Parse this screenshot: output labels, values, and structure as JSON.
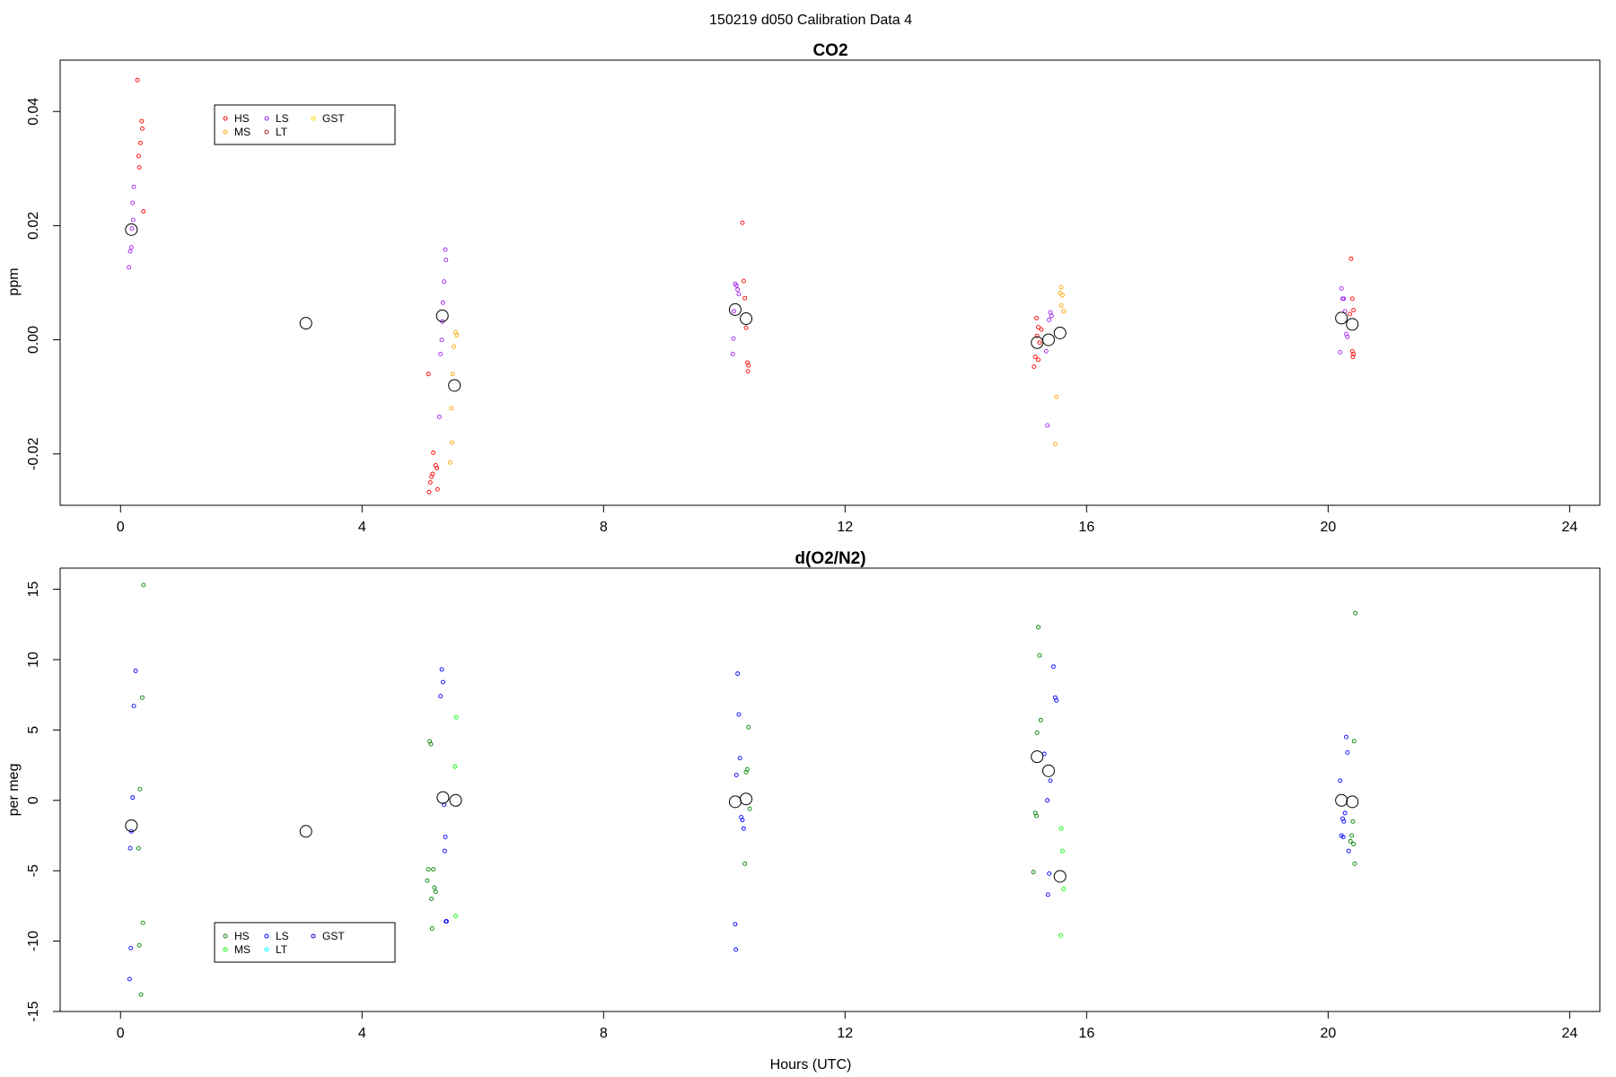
{
  "figure": {
    "title": "150219   d050   Calibration Data 4"
  },
  "colors": {
    "HS": "#ff0000",
    "MS": "#ffa500",
    "LS": "#a020f0",
    "LT": "#b22222",
    "GST": "#ffd700",
    "HS2": "#008000",
    "MS2": "#00ff00",
    "LS2": "#0000ff",
    "LT2": "#00ffff",
    "GST2": "#0000cd",
    "mean": "#000000"
  },
  "chart_data": [
    {
      "type": "scatter",
      "title": "CO2",
      "xlabel": "",
      "ylabel": "ppm",
      "xlim": [
        -1,
        24.5
      ],
      "ylim": [
        -0.029,
        0.049
      ],
      "xticks": [
        0,
        4,
        8,
        12,
        16,
        20,
        24
      ],
      "xtick_labels": [
        "0",
        "4",
        "8",
        "12",
        "16",
        "20",
        "24"
      ],
      "yticks": [
        -0.02,
        0.0,
        0.02,
        0.04
      ],
      "ytick_labels": [
        "-0.02",
        "0.00",
        "0.02",
        "0.04"
      ],
      "grid": false,
      "legend": {
        "position": "top-left",
        "entries": [
          {
            "label": "HS",
            "color": "#ff0000"
          },
          {
            "label": "MS",
            "color": "#ffa500"
          },
          {
            "label": "LS",
            "color": "#a020f0"
          },
          {
            "label": "LT",
            "color": "#b22222"
          },
          {
            "label": "GST",
            "color": "#ffd700"
          }
        ]
      },
      "series": [
        {
          "name": "HS",
          "color": "#ff0000",
          "points": [
            [
              0.28,
              0.0455
            ],
            [
              0.35,
              0.0383
            ],
            [
              0.36,
              0.037
            ],
            [
              0.33,
              0.0345
            ],
            [
              0.3,
              0.0322
            ],
            [
              0.31,
              0.0302
            ],
            [
              0.38,
              0.0225
            ],
            [
              5.1,
              -0.006
            ],
            [
              5.18,
              -0.0198
            ],
            [
              5.22,
              -0.022
            ],
            [
              5.24,
              -0.0225
            ],
            [
              5.17,
              -0.0235
            ],
            [
              5.15,
              -0.024
            ],
            [
              5.13,
              -0.025
            ],
            [
              5.25,
              -0.0262
            ],
            [
              5.11,
              -0.0267
            ],
            [
              10.3,
              0.0205
            ],
            [
              10.32,
              0.0103
            ],
            [
              10.34,
              0.0073
            ],
            [
              10.36,
              0.0021
            ],
            [
              10.38,
              -0.004
            ],
            [
              10.4,
              -0.0045
            ],
            [
              10.39,
              -0.0055
            ],
            [
              15.17,
              0.0038
            ],
            [
              15.2,
              0.0022
            ],
            [
              15.25,
              0.0018
            ],
            [
              15.18,
              0.0007
            ],
            [
              15.22,
              -0.0005
            ],
            [
              15.15,
              -0.003
            ],
            [
              15.2,
              -0.0035
            ],
            [
              15.13,
              -0.0047
            ],
            [
              20.38,
              0.0142
            ],
            [
              20.4,
              0.0072
            ],
            [
              20.42,
              0.0052
            ],
            [
              20.36,
              0.0045
            ],
            [
              20.4,
              -0.002
            ],
            [
              20.42,
              -0.0025
            ],
            [
              20.41,
              -0.003
            ]
          ]
        },
        {
          "name": "MS",
          "color": "#ffa500",
          "points": [
            [
              5.55,
              0.0013
            ],
            [
              5.57,
              0.0008
            ],
            [
              5.52,
              -0.0012
            ],
            [
              5.5,
              -0.006
            ],
            [
              5.48,
              -0.012
            ],
            [
              5.49,
              -0.018
            ],
            [
              5.46,
              -0.0215
            ],
            [
              15.58,
              0.0092
            ],
            [
              15.56,
              0.0082
            ],
            [
              15.6,
              0.0078
            ],
            [
              15.58,
              0.006
            ],
            [
              15.62,
              0.005
            ],
            [
              15.5,
              -0.01
            ],
            [
              15.48,
              -0.0183
            ]
          ]
        },
        {
          "name": "LS",
          "color": "#a020f0",
          "points": [
            [
              0.22,
              0.0268
            ],
            [
              0.2,
              0.024
            ],
            [
              0.21,
              0.021
            ],
            [
              0.19,
              0.0195
            ],
            [
              0.18,
              0.0162
            ],
            [
              0.16,
              0.0155
            ],
            [
              0.14,
              0.0127
            ],
            [
              5.38,
              0.0158
            ],
            [
              5.39,
              0.014
            ],
            [
              5.36,
              0.0102
            ],
            [
              5.34,
              0.0065
            ],
            [
              5.33,
              0.0032
            ],
            [
              5.32,
              0.0
            ],
            [
              5.3,
              -0.0025
            ],
            [
              5.28,
              -0.0135
            ],
            [
              10.18,
              0.0098
            ],
            [
              10.2,
              0.0095
            ],
            [
              10.22,
              0.0088
            ],
            [
              10.24,
              0.008
            ],
            [
              10.16,
              0.005
            ],
            [
              10.15,
              0.0002
            ],
            [
              10.14,
              -0.0025
            ],
            [
              15.4,
              0.0048
            ],
            [
              15.42,
              0.0042
            ],
            [
              15.38,
              0.0035
            ],
            [
              15.33,
              -0.002
            ],
            [
              15.35,
              -0.015
            ],
            [
              20.22,
              0.009
            ],
            [
              20.24,
              0.0072
            ],
            [
              20.26,
              0.0072
            ],
            [
              20.28,
              0.005
            ],
            [
              20.3,
              0.001
            ],
            [
              20.32,
              0.0005
            ],
            [
              20.2,
              -0.0022
            ]
          ]
        },
        {
          "name": "mean",
          "color": "#000000",
          "marker": "large-open-circle",
          "points": [
            [
              0.18,
              0.0193
            ],
            [
              3.07,
              0.0029
            ],
            [
              5.33,
              0.0042
            ],
            [
              5.53,
              -0.008
            ],
            [
              10.18,
              0.0053
            ],
            [
              10.36,
              0.0037
            ],
            [
              15.18,
              -0.0005
            ],
            [
              15.37,
              0.0
            ],
            [
              15.56,
              0.0012
            ],
            [
              20.22,
              0.0038
            ],
            [
              20.4,
              0.0027
            ]
          ]
        }
      ]
    },
    {
      "type": "scatter",
      "title": "d(O2/N2)",
      "xlabel": "Hours (UTC)",
      "ylabel": "per meg",
      "xlim": [
        -1,
        24.5
      ],
      "ylim": [
        -15,
        16.5
      ],
      "xticks": [
        0,
        4,
        8,
        12,
        16,
        20,
        24
      ],
      "xtick_labels": [
        "0",
        "4",
        "8",
        "12",
        "16",
        "20",
        "24"
      ],
      "yticks": [
        -15,
        -10,
        -5,
        0,
        5,
        10,
        15
      ],
      "ytick_labels": [
        "-15",
        "-10",
        "-5",
        "0",
        "5",
        "10",
        "15"
      ],
      "grid": false,
      "legend": {
        "position": "bottom-left",
        "entries": [
          {
            "label": "HS",
            "color": "#008000"
          },
          {
            "label": "MS",
            "color": "#00ff00"
          },
          {
            "label": "LS",
            "color": "#0000ff"
          },
          {
            "label": "LT",
            "color": "#00ffff"
          },
          {
            "label": "GST",
            "color": "#0000cd"
          }
        ]
      },
      "series": [
        {
          "name": "HS",
          "color": "#008000",
          "points": [
            [
              0.38,
              15.3
            ],
            [
              0.36,
              7.3
            ],
            [
              0.32,
              0.8
            ],
            [
              0.3,
              -3.4
            ],
            [
              0.37,
              -8.7
            ],
            [
              0.31,
              -10.3
            ],
            [
              0.34,
              -13.8
            ],
            [
              5.12,
              4.2
            ],
            [
              5.14,
              4.0
            ],
            [
              5.1,
              -4.9
            ],
            [
              5.18,
              -4.9
            ],
            [
              5.08,
              -5.7
            ],
            [
              5.2,
              -6.2
            ],
            [
              5.22,
              -6.5
            ],
            [
              5.15,
              -7.0
            ],
            [
              5.16,
              -9.1
            ],
            [
              10.4,
              5.2
            ],
            [
              10.38,
              2.2
            ],
            [
              10.36,
              2.0
            ],
            [
              10.42,
              -0.6
            ],
            [
              10.34,
              -4.5
            ],
            [
              15.22,
              10.3
            ],
            [
              15.2,
              12.3
            ],
            [
              15.24,
              5.7
            ],
            [
              15.18,
              4.8
            ],
            [
              15.15,
              -0.9
            ],
            [
              15.17,
              -1.1
            ],
            [
              15.12,
              -5.1
            ],
            [
              20.45,
              13.3
            ],
            [
              20.43,
              4.2
            ],
            [
              20.41,
              -1.5
            ],
            [
              20.39,
              -2.5
            ],
            [
              20.37,
              -2.9
            ],
            [
              20.42,
              -3.1
            ],
            [
              20.44,
              -4.5
            ]
          ]
        },
        {
          "name": "MS",
          "color": "#00ff00",
          "points": [
            [
              5.56,
              5.9
            ],
            [
              5.54,
              2.4
            ],
            [
              5.55,
              -8.2
            ],
            [
              15.58,
              -2.0
            ],
            [
              15.6,
              -3.6
            ],
            [
              15.62,
              -6.3
            ],
            [
              15.57,
              -9.6
            ]
          ]
        },
        {
          "name": "LS",
          "color": "#0000ff",
          "points": [
            [
              0.25,
              9.2
            ],
            [
              0.22,
              6.7
            ],
            [
              0.2,
              0.2
            ],
            [
              0.18,
              -2.2
            ],
            [
              0.16,
              -3.4
            ],
            [
              0.17,
              -10.5
            ],
            [
              0.15,
              -12.7
            ],
            [
              5.32,
              9.3
            ],
            [
              5.34,
              8.4
            ],
            [
              5.3,
              7.4
            ],
            [
              5.36,
              -0.3
            ],
            [
              5.38,
              -2.6
            ],
            [
              5.37,
              -3.6
            ],
            [
              5.39,
              -8.6
            ],
            [
              5.4,
              -8.6
            ],
            [
              10.22,
              9.0
            ],
            [
              10.24,
              6.1
            ],
            [
              10.26,
              3.0
            ],
            [
              10.2,
              1.8
            ],
            [
              10.28,
              -1.2
            ],
            [
              10.3,
              -1.4
            ],
            [
              10.32,
              -2.0
            ],
            [
              10.18,
              -8.8
            ],
            [
              10.19,
              -10.6
            ],
            [
              15.45,
              9.5
            ],
            [
              15.48,
              7.3
            ],
            [
              15.5,
              7.1
            ],
            [
              15.3,
              3.3
            ],
            [
              15.4,
              1.4
            ],
            [
              15.35,
              0.0
            ],
            [
              15.38,
              -5.2
            ],
            [
              15.36,
              -6.7
            ],
            [
              20.3,
              4.5
            ],
            [
              20.32,
              3.4
            ],
            [
              20.2,
              1.4
            ],
            [
              20.24,
              -1.3
            ],
            [
              20.26,
              -1.5
            ],
            [
              20.28,
              -0.9
            ],
            [
              20.22,
              -2.5
            ],
            [
              20.25,
              -2.6
            ],
            [
              20.34,
              -3.6
            ]
          ]
        },
        {
          "name": "mean",
          "color": "#000000",
          "marker": "large-open-circle",
          "points": [
            [
              0.18,
              -1.8
            ],
            [
              3.07,
              -2.2
            ],
            [
              5.34,
              0.2
            ],
            [
              5.55,
              0.0
            ],
            [
              10.18,
              -0.1
            ],
            [
              10.36,
              0.1
            ],
            [
              15.18,
              3.1
            ],
            [
              15.37,
              2.1
            ],
            [
              15.56,
              -5.4
            ],
            [
              20.22,
              0.0
            ],
            [
              20.4,
              -0.1
            ]
          ]
        }
      ]
    }
  ]
}
